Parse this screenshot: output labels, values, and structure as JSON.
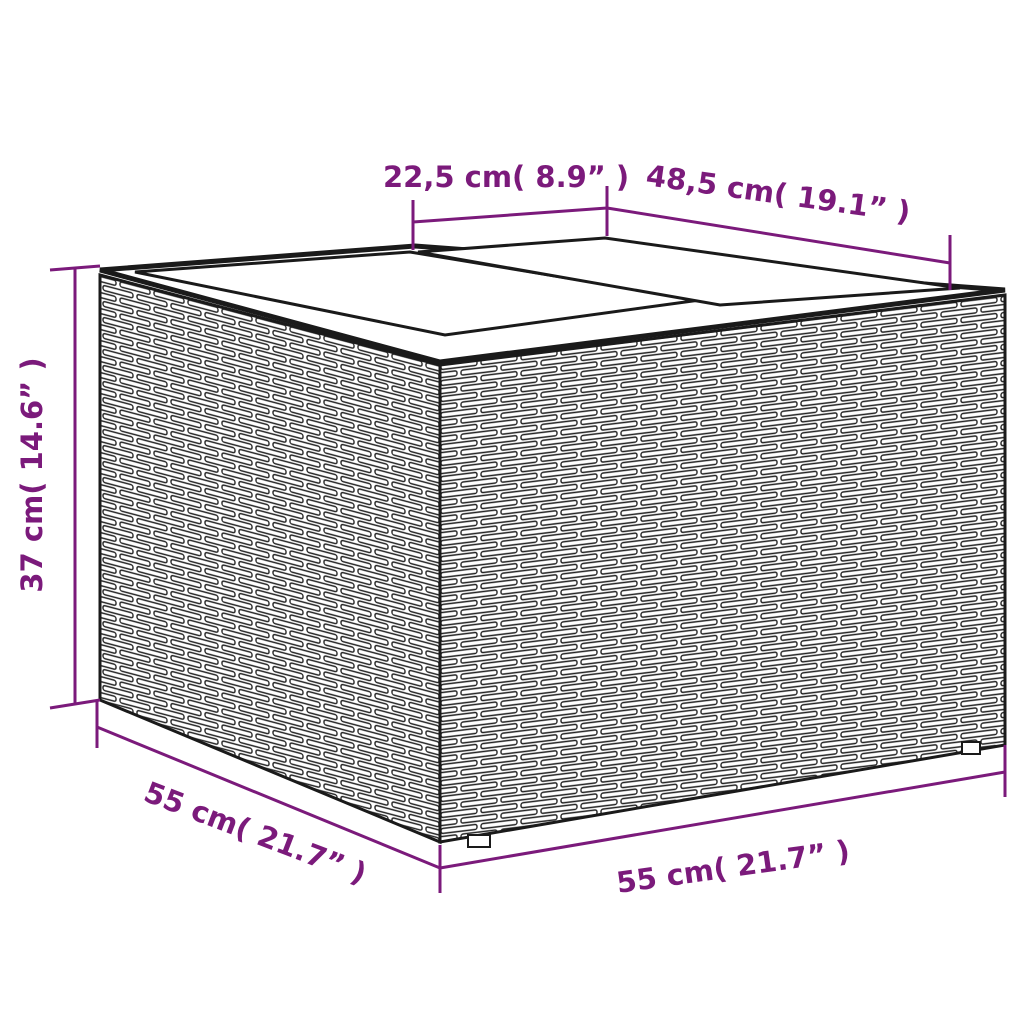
{
  "colors": {
    "dimension": "#7b1a7b",
    "outline": "#1a1a1a",
    "background": "#ffffff"
  },
  "product": {
    "name_icon": "rattan-storage-box-with-glass-top"
  },
  "dimensions": {
    "top_panel_width": "22,5 cm( 8.9” )",
    "top_depth": "48,5 cm( 19.1” )",
    "height": "37 cm( 14.6” )",
    "left_width": "55 cm( 21.7” )",
    "front_width": "55 cm( 21.7” )"
  }
}
